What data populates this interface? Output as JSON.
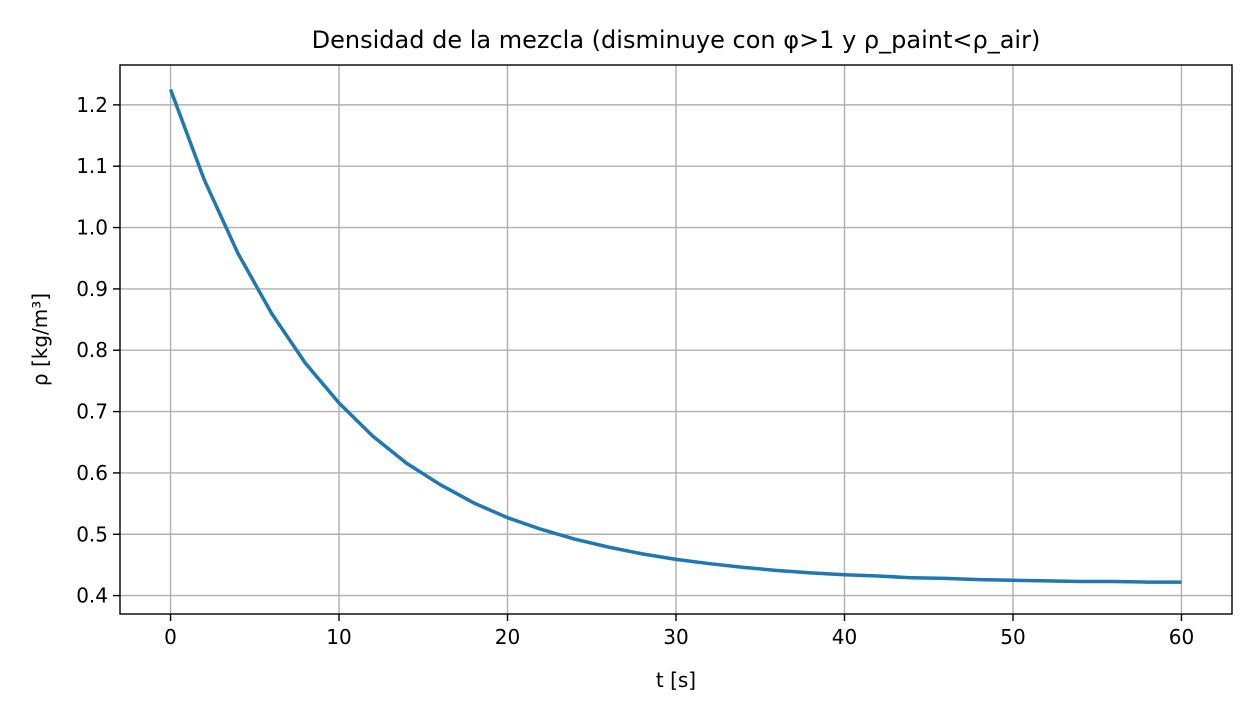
{
  "chart_data": {
    "type": "line",
    "title": "Densidad de la mezcla (disminuye con φ>1 y ρ_paint<ρ_air)",
    "xlabel": "t [s]",
    "ylabel": "ρ [kg/m³]",
    "xlim": [
      -3,
      63
    ],
    "ylim": [
      0.37,
      1.265
    ],
    "xticks": [
      0,
      10,
      20,
      30,
      40,
      50,
      60
    ],
    "xtick_labels": [
      "0",
      "10",
      "20",
      "30",
      "40",
      "50",
      "60"
    ],
    "yticks": [
      0.4,
      0.5,
      0.6,
      0.7,
      0.8,
      0.9,
      1.0,
      1.1,
      1.2
    ],
    "ytick_labels": [
      "0.4",
      "0.5",
      "0.6",
      "0.7",
      "0.8",
      "0.9",
      "1.0",
      "1.1",
      "1.2"
    ],
    "grid": true,
    "series": [
      {
        "color": "#1f77b4",
        "x": [
          0,
          2,
          4,
          6,
          8,
          10,
          12,
          14,
          16,
          18,
          20,
          22,
          24,
          26,
          28,
          30,
          32,
          34,
          36,
          38,
          40,
          42,
          44,
          46,
          48,
          50,
          52,
          54,
          56,
          58,
          60
        ],
        "y": [
          1.225,
          1.078,
          0.958,
          0.86,
          0.779,
          0.714,
          0.66,
          0.616,
          0.581,
          0.551,
          0.527,
          0.508,
          0.492,
          0.479,
          0.468,
          0.459,
          0.452,
          0.446,
          0.441,
          0.437,
          0.434,
          0.432,
          0.429,
          0.428,
          0.426,
          0.425,
          0.424,
          0.423,
          0.423,
          0.422,
          0.422
        ]
      }
    ]
  }
}
